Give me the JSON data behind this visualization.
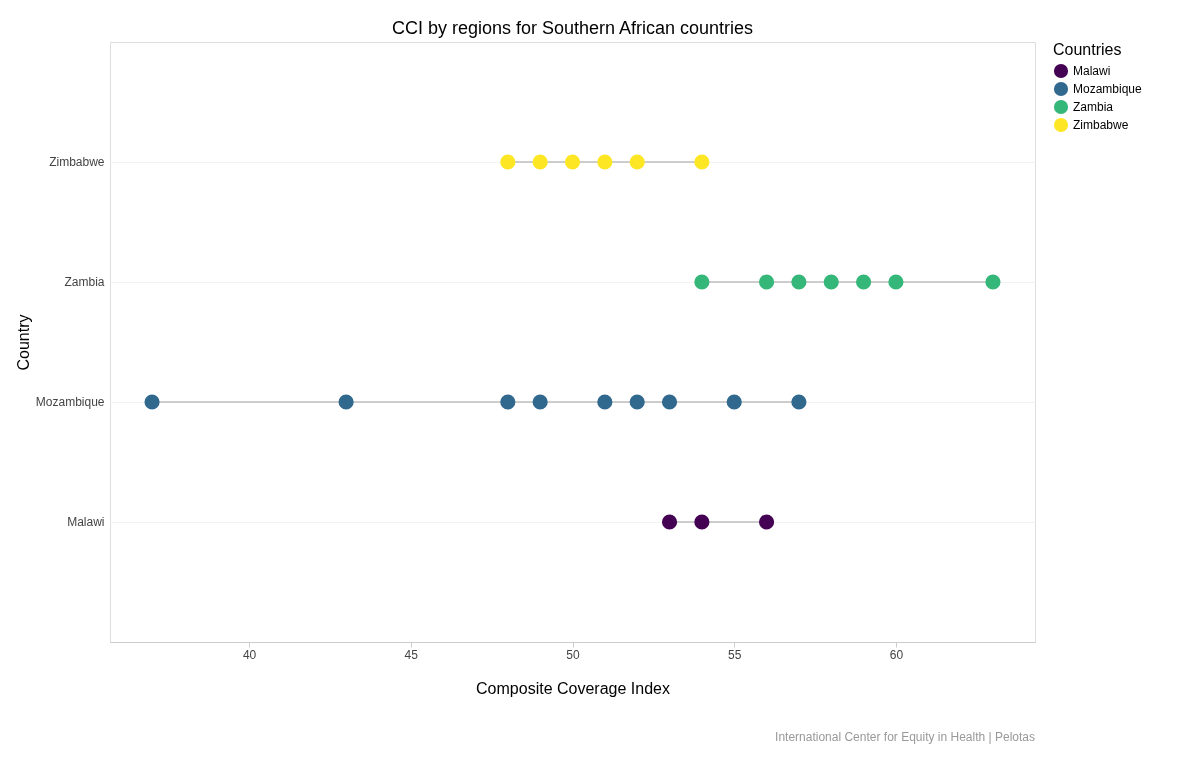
{
  "chart_data": {
    "type": "scatter",
    "orientation": "horizontal",
    "title": "CCI by regions for Southern African countries",
    "xlabel": "Composite Coverage Index",
    "ylabel": "Country",
    "legend_title": "Countries",
    "categories": [
      "Zimbabwe",
      "Zambia",
      "Mozambique",
      "Malawi"
    ],
    "xlim": [
      35.7,
      64.3
    ],
    "xticks": [
      40,
      45,
      50,
      55,
      60
    ],
    "grid": "y",
    "legend": "right",
    "marker": "circle",
    "series": [
      {
        "name": "Malawi",
        "color": "#440154",
        "values": [
          null,
          null,
          null,
          53
        ]
      },
      {
        "color": "#440154",
        "values": [
          null,
          null,
          null,
          54
        ]
      },
      {
        "color": "#440154",
        "values": [
          null,
          null,
          null,
          56
        ]
      },
      {
        "name": "Mozambique",
        "color": "#31688e",
        "values": [
          null,
          null,
          37,
          null
        ]
      },
      {
        "color": "#31688e",
        "values": [
          null,
          null,
          43,
          null
        ]
      },
      {
        "color": "#31688e",
        "values": [
          null,
          null,
          48,
          null
        ]
      },
      {
        "color": "#31688e",
        "values": [
          null,
          null,
          49,
          null
        ]
      },
      {
        "color": "#31688e",
        "values": [
          null,
          null,
          51,
          null
        ]
      },
      {
        "color": "#31688e",
        "values": [
          null,
          null,
          52,
          null
        ]
      },
      {
        "color": "#31688e",
        "values": [
          null,
          null,
          53,
          null
        ]
      },
      {
        "color": "#31688e",
        "values": [
          null,
          null,
          55,
          null
        ]
      },
      {
        "color": "#31688e",
        "values": [
          null,
          null,
          57,
          null
        ]
      },
      {
        "name": "Zambia",
        "color": "#35b779",
        "values": [
          null,
          54,
          null,
          null
        ]
      },
      {
        "color": "#35b779",
        "values": [
          null,
          56,
          null,
          null
        ]
      },
      {
        "color": "#35b779",
        "values": [
          null,
          57,
          null,
          null
        ]
      },
      {
        "color": "#35b779",
        "values": [
          null,
          58,
          null,
          null
        ]
      },
      {
        "color": "#35b779",
        "values": [
          null,
          59,
          null,
          null
        ]
      },
      {
        "color": "#35b779",
        "values": [
          null,
          60,
          null,
          null
        ]
      },
      {
        "color": "#35b779",
        "values": [
          null,
          63,
          null,
          null
        ]
      },
      {
        "name": "Zimbabwe",
        "color": "#fde725",
        "values": [
          48,
          null,
          null,
          null
        ]
      },
      {
        "color": "#fde725",
        "values": [
          49,
          null,
          null,
          null
        ]
      },
      {
        "color": "#fde725",
        "values": [
          50,
          null,
          null,
          null
        ]
      },
      {
        "color": "#fde725",
        "values": [
          51,
          null,
          null,
          null
        ]
      },
      {
        "color": "#fde725",
        "values": [
          52,
          null,
          null,
          null
        ]
      },
      {
        "color": "#fde725",
        "values": [
          54,
          null,
          null,
          null
        ]
      }
    ],
    "annotations": [
      "International Center for Equity in Health | Pelotas"
    ]
  }
}
